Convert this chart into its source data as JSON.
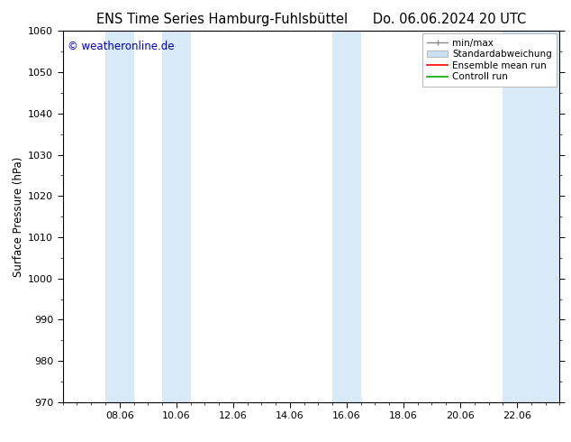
{
  "title_left": "ENS Time Series Hamburg-Fuhlsbüttel",
  "title_right": "Do. 06.06.2024 20 UTC",
  "ylabel": "Surface Pressure (hPa)",
  "ylim": [
    970,
    1060
  ],
  "yticks": [
    970,
    980,
    990,
    1000,
    1010,
    1020,
    1030,
    1040,
    1050,
    1060
  ],
  "xtick_labels": [
    "08.06",
    "10.06",
    "12.06",
    "14.06",
    "16.06",
    "18.06",
    "20.06",
    "22.06"
  ],
  "xtick_positions": [
    2.0,
    4.0,
    6.0,
    8.0,
    10.0,
    12.0,
    14.0,
    16.0
  ],
  "xlim": [
    0,
    17.5
  ],
  "shaded_bands": [
    {
      "x_start": 1.5,
      "x_end": 2.5
    },
    {
      "x_start": 3.5,
      "x_end": 4.5
    },
    {
      "x_start": 9.5,
      "x_end": 10.5
    },
    {
      "x_start": 15.5,
      "x_end": 17.5
    }
  ],
  "band_color": "#d8eaf8",
  "watermark": "© weatheronline.de",
  "watermark_color": "#0000cc",
  "bg_color": "#ffffff",
  "title_fontsize": 10.5,
  "axis_label_fontsize": 8.5,
  "tick_fontsize": 8,
  "legend_label_fontsize": 7.5
}
